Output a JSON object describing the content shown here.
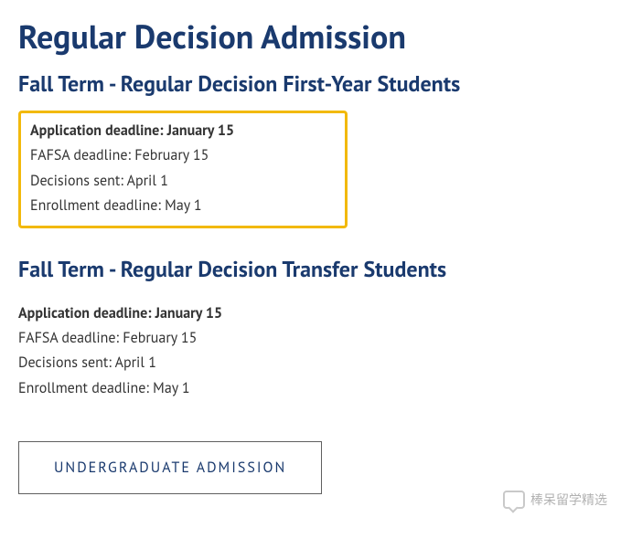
{
  "colors": {
    "heading": "#1a3a6e",
    "text": "#333333",
    "highlight_border": "#f2b90c",
    "button_border": "#5f5f5f",
    "button_text": "#1a3a6e",
    "background": "#ffffff"
  },
  "page_title": "Regular Decision Admission",
  "sections": [
    {
      "heading": "Fall Term - Regular Decision First-Year Students",
      "highlighted": true,
      "deadlines": [
        {
          "label": "Application deadline:",
          "value": "January 15",
          "bold": true
        },
        {
          "label": "FAFSA deadline:",
          "value": "February 15",
          "bold": false
        },
        {
          "label": "Decisions sent:",
          "value": "April 1",
          "bold": false
        },
        {
          "label": "Enrollment deadline:",
          "value": "May 1",
          "bold": false
        }
      ]
    },
    {
      "heading": "Fall Term - Regular Decision Transfer Students",
      "highlighted": false,
      "deadlines": [
        {
          "label": "Application deadline:",
          "value": "January 15",
          "bold": true
        },
        {
          "label": "FAFSA deadline:",
          "value": "February 15",
          "bold": false
        },
        {
          "label": "Decisions sent:",
          "value": "April 1",
          "bold": false
        },
        {
          "label": "Enrollment deadline:",
          "value": "May 1",
          "bold": false
        }
      ]
    }
  ],
  "button_label": "UNDERGRADUATE ADMISSION",
  "watermark_text": "棒呆留学精选"
}
